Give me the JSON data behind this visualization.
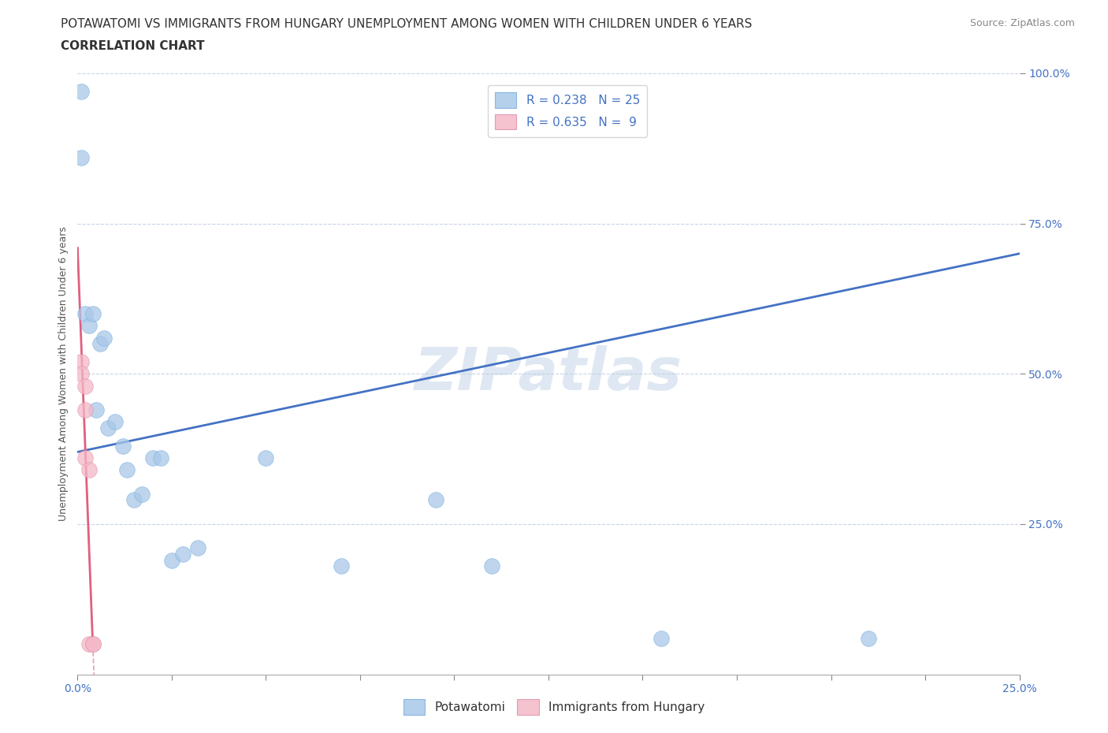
{
  "title_line1": "POTAWATOMI VS IMMIGRANTS FROM HUNGARY UNEMPLOYMENT AMONG WOMEN WITH CHILDREN UNDER 6 YEARS",
  "title_line2": "CORRELATION CHART",
  "source": "Source: ZipAtlas.com",
  "ylabel": "Unemployment Among Women with Children Under 6 years",
  "watermark": "ZIPatlas",
  "potawatomi_x": [
    0.001,
    0.001,
    0.002,
    0.003,
    0.004,
    0.005,
    0.006,
    0.007,
    0.008,
    0.01,
    0.012,
    0.013,
    0.015,
    0.017,
    0.02,
    0.022,
    0.025,
    0.028,
    0.032,
    0.05,
    0.07,
    0.095,
    0.11,
    0.155,
    0.21
  ],
  "potawatomi_y": [
    0.97,
    0.86,
    0.6,
    0.58,
    0.6,
    0.44,
    0.55,
    0.56,
    0.41,
    0.42,
    0.38,
    0.34,
    0.29,
    0.3,
    0.36,
    0.36,
    0.19,
    0.2,
    0.21,
    0.36,
    0.18,
    0.29,
    0.18,
    0.06,
    0.06
  ],
  "hungary_x": [
    0.001,
    0.001,
    0.002,
    0.002,
    0.002,
    0.003,
    0.003,
    0.004,
    0.004
  ],
  "hungary_y": [
    0.52,
    0.5,
    0.48,
    0.44,
    0.36,
    0.34,
    0.05,
    0.05,
    0.05
  ],
  "R_potawatomi": 0.238,
  "N_potawatomi": 25,
  "R_hungary": 0.635,
  "N_hungary": 9,
  "blue_scatter_color": "#a8c8e8",
  "pink_scatter_color": "#f4b8c8",
  "blue_line_color": "#4472c4",
  "pink_line_color": "#e06080",
  "pink_dashed_color": "#e8a0b0",
  "xlim": [
    0.0,
    0.25
  ],
  "ylim": [
    0.0,
    1.0
  ],
  "xtick_labels": [
    "0.0%",
    "",
    "",
    "",
    "",
    "",
    "",
    "",
    "",
    "",
    "25.0%"
  ],
  "xtick_positions": [
    0.0,
    0.025,
    0.05,
    0.075,
    0.1,
    0.125,
    0.15,
    0.175,
    0.2,
    0.225,
    0.25
  ],
  "ytick_labels": [
    "100.0%",
    "75.0%",
    "50.0%",
    "25.0%"
  ],
  "ytick_positions": [
    1.0,
    0.75,
    0.5,
    0.25
  ],
  "title_fontsize": 11,
  "axis_label_fontsize": 9,
  "tick_fontsize": 10,
  "legend_fontsize": 11,
  "source_fontsize": 9,
  "background_color": "#ffffff",
  "grid_color": "#c8d4e8",
  "figwidth": 14.06,
  "figheight": 9.3,
  "dpi": 100
}
